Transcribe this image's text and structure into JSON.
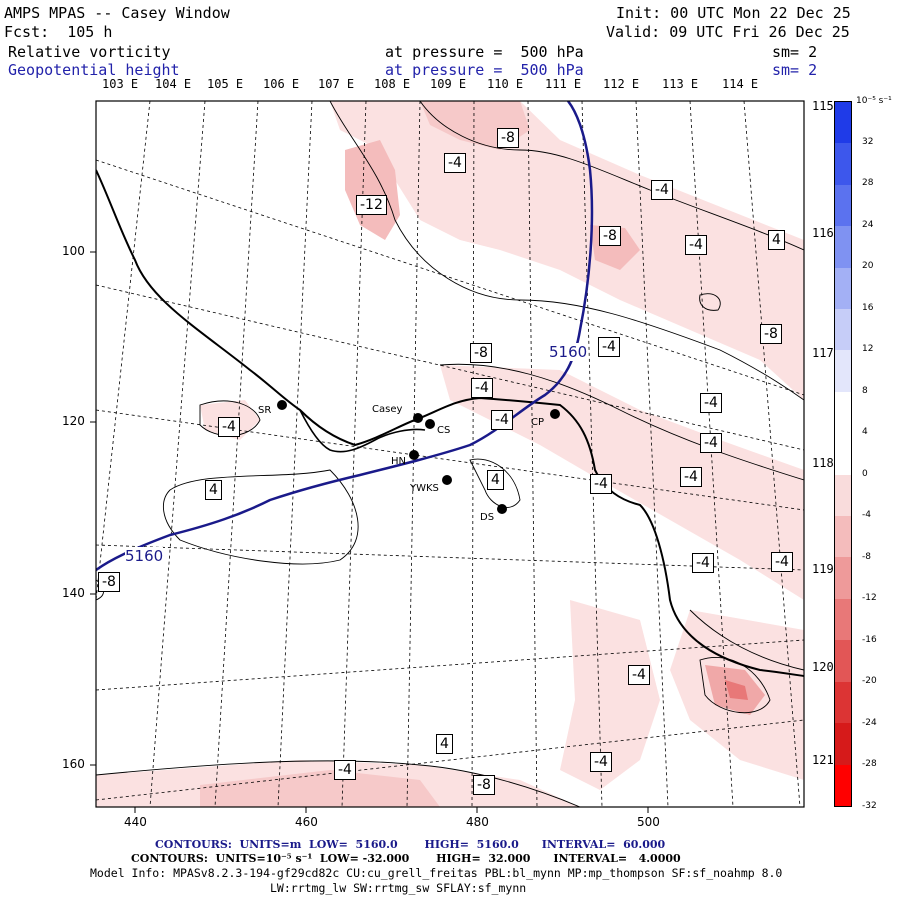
{
  "header": {
    "title": "AMPS MPAS -- Casey Window",
    "forecast": "Fcst:  105 h",
    "init": "Init: 00 UTC Mon 22 Dec 25",
    "valid": "Valid: 09 UTC Fri 26 Dec 25",
    "field1_name": "Relative vorticity",
    "field1_level": "at pressure =  500 hPa",
    "field1_smooth": "sm= 2",
    "field2_name": "Geopotential height",
    "field2_level": "at pressure =  500 hPa",
    "field2_smooth": "sm= 2"
  },
  "map": {
    "lon_labels_top": [
      "103 E",
      "104 E",
      "105 E",
      "106 E",
      "107 E",
      "108 E",
      "109 E",
      "110 E",
      "111 E",
      "112 E",
      "113 E",
      "114 E"
    ],
    "lon_labels_right": [
      "115 E",
      "116 E",
      "117 E",
      "118 E",
      "119 E",
      "120 E",
      "121 E"
    ],
    "y_ticks": [
      "100",
      "120",
      "140",
      "160"
    ],
    "x_ticks": [
      "440",
      "460",
      "480",
      "500"
    ],
    "stations": [
      {
        "name": "SR"
      },
      {
        "name": "Casey"
      },
      {
        "name": "CS"
      },
      {
        "name": "CP"
      },
      {
        "name": "HN"
      },
      {
        "name": "YWKS"
      },
      {
        "name": "DS"
      }
    ],
    "height_contour_label": "5160",
    "vorticity_labels": [
      "-8",
      "-4",
      "-12",
      "-4",
      "-8",
      "-4",
      "4",
      "-8",
      "-8",
      "-4",
      "-4",
      "-4",
      "-4",
      "-4",
      "-4",
      "4",
      "-4",
      "4",
      "-4",
      "-4",
      "-4",
      "4",
      "-4",
      "-4",
      "-8",
      "-8",
      "-4"
    ]
  },
  "colorbar": {
    "units": "10⁻⁵ s⁻¹",
    "labels": [
      "32",
      "28",
      "24",
      "20",
      "16",
      "12",
      "8",
      "4",
      "0",
      "-4",
      "-8",
      "-12",
      "-16",
      "-20",
      "-24",
      "-28",
      "-32"
    ],
    "colors": [
      "#1f3be8",
      "#3d57ec",
      "#5b72ef",
      "#7f92f2",
      "#a3b0f5",
      "#c6cdf8",
      "#e3e6fb",
      "#ffffff",
      "#ffffff",
      "#f9dcdc",
      "#f4bcbc",
      "#ee9a9a",
      "#e87878",
      "#e25656",
      "#dc3434",
      "#d61a1a",
      "#ff0000"
    ]
  },
  "footer": {
    "contours1": "CONTOURS:  UNITS=m  LOW=  5160.0       HIGH=  5160.0      INTERVAL=  60.000",
    "contours2": "CONTOURS:  UNITS=10⁻⁵ s⁻¹  LOW= -32.000       HIGH=  32.000      INTERVAL=   4.0000",
    "model_info": "Model Info: MPASv8.2.3-194-gf29cd82c CU:cu_grell_freitas PBL:bl_mynn MP:mp_thompson SF:sf_noahmp 8.0",
    "model_info2": "LW:rrtmg_lw SW:rrtmg_sw SFLAY:sf_mynn"
  }
}
